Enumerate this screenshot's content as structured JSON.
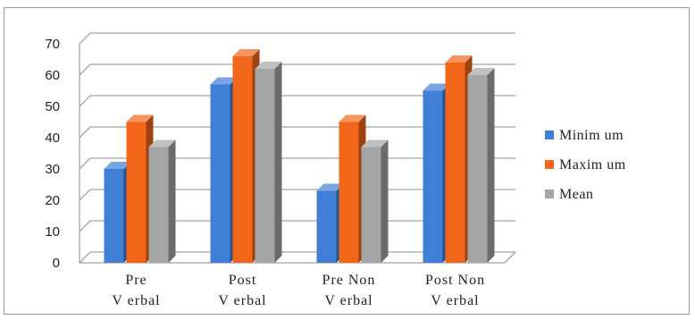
{
  "chart_data": {
    "type": "bar",
    "style": "3d-clustered-column",
    "categories": [
      [
        "Pre",
        "V erbal"
      ],
      [
        "Post",
        "V erbal"
      ],
      [
        "Pre Non",
        "V erbal"
      ],
      [
        "Post Non",
        "V erbal"
      ]
    ],
    "series": [
      {
        "name": "Minimum",
        "color": "#3f7fd6",
        "values": [
          30,
          57,
          23,
          55
        ]
      },
      {
        "name": "Maximum",
        "color": "#f2661a",
        "values": [
          45,
          66,
          45,
          64
        ]
      },
      {
        "name": "Mean",
        "color": "#a5a5a5",
        "values": [
          37,
          62,
          37,
          60
        ]
      }
    ],
    "ylim": [
      0,
      70
    ],
    "yticks": [
      "0",
      "10",
      "20",
      "30",
      "40",
      "50",
      "60",
      "70"
    ],
    "legend_labels": [
      "Minim um",
      "Maxim um",
      "Mean"
    ],
    "grid": true,
    "legend_position": "right"
  }
}
